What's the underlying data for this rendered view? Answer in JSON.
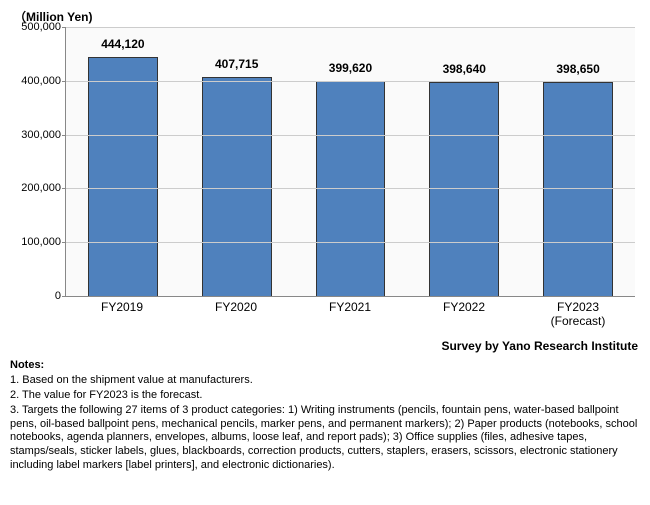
{
  "chart": {
    "type": "bar",
    "y_axis_title": "（Million Yen)",
    "ylim": [
      0,
      500000
    ],
    "ytick_step": 100000,
    "yticks": [
      {
        "v": 0,
        "label": "0"
      },
      {
        "v": 100000,
        "label": "100,000"
      },
      {
        "v": 200000,
        "label": "200,000"
      },
      {
        "v": 300000,
        "label": "300,000"
      },
      {
        "v": 400000,
        "label": "400,000"
      },
      {
        "v": 500000,
        "label": "500,000"
      }
    ],
    "bar_color": "#4f81bd",
    "bar_border_color": "#333333",
    "grid_color": "#cccccc",
    "background_color": "#fafafa",
    "title_fontsize": 12,
    "label_fontsize": 12,
    "value_fontsize": 12,
    "bars": [
      {
        "label": "FY2019",
        "value": 444120,
        "value_label": "444,120"
      },
      {
        "label": "FY2020",
        "value": 407715,
        "value_label": "407,715"
      },
      {
        "label": "FY2021",
        "value": 399620,
        "value_label": "399,620"
      },
      {
        "label": "FY2022",
        "value": 398640,
        "value_label": "398,640"
      },
      {
        "label": "FY2023\n(Forecast)",
        "value": 398650,
        "value_label": "398,650"
      }
    ]
  },
  "survey_credit": "Survey by Yano Research Institute",
  "notes": {
    "heading": "Notes:",
    "items": [
      "1. Based on the shipment value at manufacturers.",
      "2. The value for FY2023 is the forecast.",
      "3. Targets the following 27 items of 3 product categories: 1) Writing instruments (pencils, fountain pens, water-based ballpoint pens, oil-based ballpoint pens, mechanical pencils, marker pens, and permanent markers); 2) Paper products (notebooks, school notebooks, agenda planners, envelopes, albums, loose leaf, and report pads); 3) Office supplies (files, adhesive tapes, stamps/seals, sticker labels, glues, blackboards, correction products, cutters, staplers, erasers, scissors, electronic stationery including label markers [label printers], and electronic dictionaries)."
    ]
  }
}
